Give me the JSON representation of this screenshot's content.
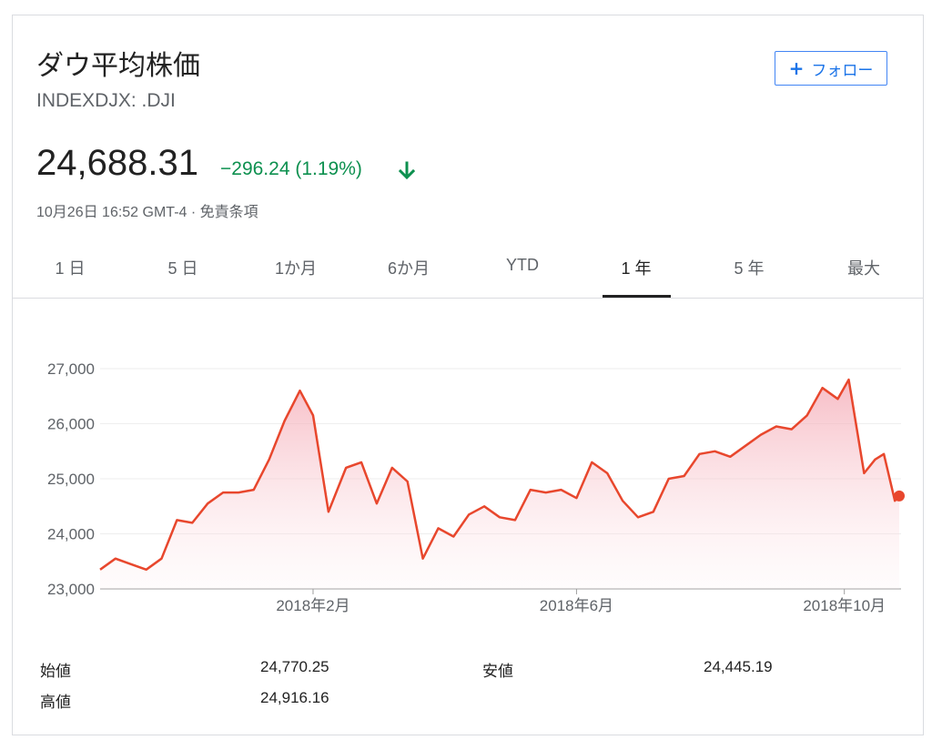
{
  "header": {
    "title": "ダウ平均株価",
    "ticker": "INDEXDJX: .DJI",
    "follow_label": "フォロー",
    "follow_icon": "plus-icon"
  },
  "quote": {
    "price": "24,688.31",
    "change": "−296.24 (1.19%)",
    "direction_icon": "arrow-down-icon",
    "change_color": "#0d904f",
    "timestamp": "10月26日 16:52 GMT-4 · 免責条項"
  },
  "tabs": [
    {
      "label": "1 日"
    },
    {
      "label": "5 日"
    },
    {
      "label": "1か月"
    },
    {
      "label": "6か月"
    },
    {
      "label": "YTD"
    },
    {
      "label": "1 年",
      "active": true
    },
    {
      "label": "5 年"
    },
    {
      "label": "最大"
    }
  ],
  "chart_data": {
    "type": "area",
    "title": "",
    "xlabel": "",
    "ylabel": "",
    "ylim": [
      23000,
      27000
    ],
    "yticks": [
      27000,
      26000,
      25000,
      24000,
      23000
    ],
    "ytick_labels": [
      "27,000",
      "26,000",
      "25,000",
      "24,000",
      "23,000"
    ],
    "xrange": [
      "2017-10-27",
      "2018-10-26"
    ],
    "xticks": [
      {
        "date": "2018-02-01",
        "label": "2018年2月"
      },
      {
        "date": "2018-06-01",
        "label": "2018年6月"
      },
      {
        "date": "2018-10-01",
        "label": "2018年10月"
      }
    ],
    "line_color": "#e8472d",
    "series": [
      {
        "x": [
          "2017-10-27",
          "2017-11-03",
          "2017-11-10",
          "2017-11-17",
          "2017-11-24",
          "2017-12-01",
          "2017-12-08",
          "2017-12-15",
          "2017-12-22",
          "2017-12-29",
          "2018-01-05",
          "2018-01-12",
          "2018-01-19",
          "2018-01-26",
          "2018-02-01",
          "2018-02-08",
          "2018-02-16",
          "2018-02-23",
          "2018-03-02",
          "2018-03-09",
          "2018-03-16",
          "2018-03-23",
          "2018-03-30",
          "2018-04-06",
          "2018-04-13",
          "2018-04-20",
          "2018-04-27",
          "2018-05-04",
          "2018-05-11",
          "2018-05-18",
          "2018-05-25",
          "2018-06-01",
          "2018-06-08",
          "2018-06-15",
          "2018-06-22",
          "2018-06-29",
          "2018-07-06",
          "2018-07-13",
          "2018-07-20",
          "2018-07-27",
          "2018-08-03",
          "2018-08-10",
          "2018-08-17",
          "2018-08-24",
          "2018-08-31",
          "2018-09-07",
          "2018-09-14",
          "2018-09-21",
          "2018-09-28",
          "2018-10-03",
          "2018-10-10",
          "2018-10-15",
          "2018-10-19",
          "2018-10-24",
          "2018-10-26"
        ],
        "y": [
          23350,
          23550,
          23450,
          23350,
          23550,
          24250,
          24200,
          24550,
          24750,
          24750,
          24800,
          25350,
          26050,
          26600,
          26150,
          24400,
          25200,
          25300,
          24550,
          25200,
          24950,
          23550,
          24100,
          23950,
          24350,
          24500,
          24300,
          24250,
          24800,
          24750,
          24800,
          24650,
          25300,
          25100,
          24600,
          24300,
          24400,
          25000,
          25050,
          25450,
          25500,
          25400,
          25600,
          25800,
          25950,
          25900,
          26150,
          26650,
          26450,
          26800,
          25100,
          25350,
          25450,
          24600,
          24688
        ]
      }
    ],
    "stats": [
      {
        "label": "始値",
        "value": "24,770.25"
      },
      {
        "label": "高値",
        "value": "24,916.16"
      },
      {
        "label": "安値",
        "value": "24,445.19"
      }
    ]
  }
}
